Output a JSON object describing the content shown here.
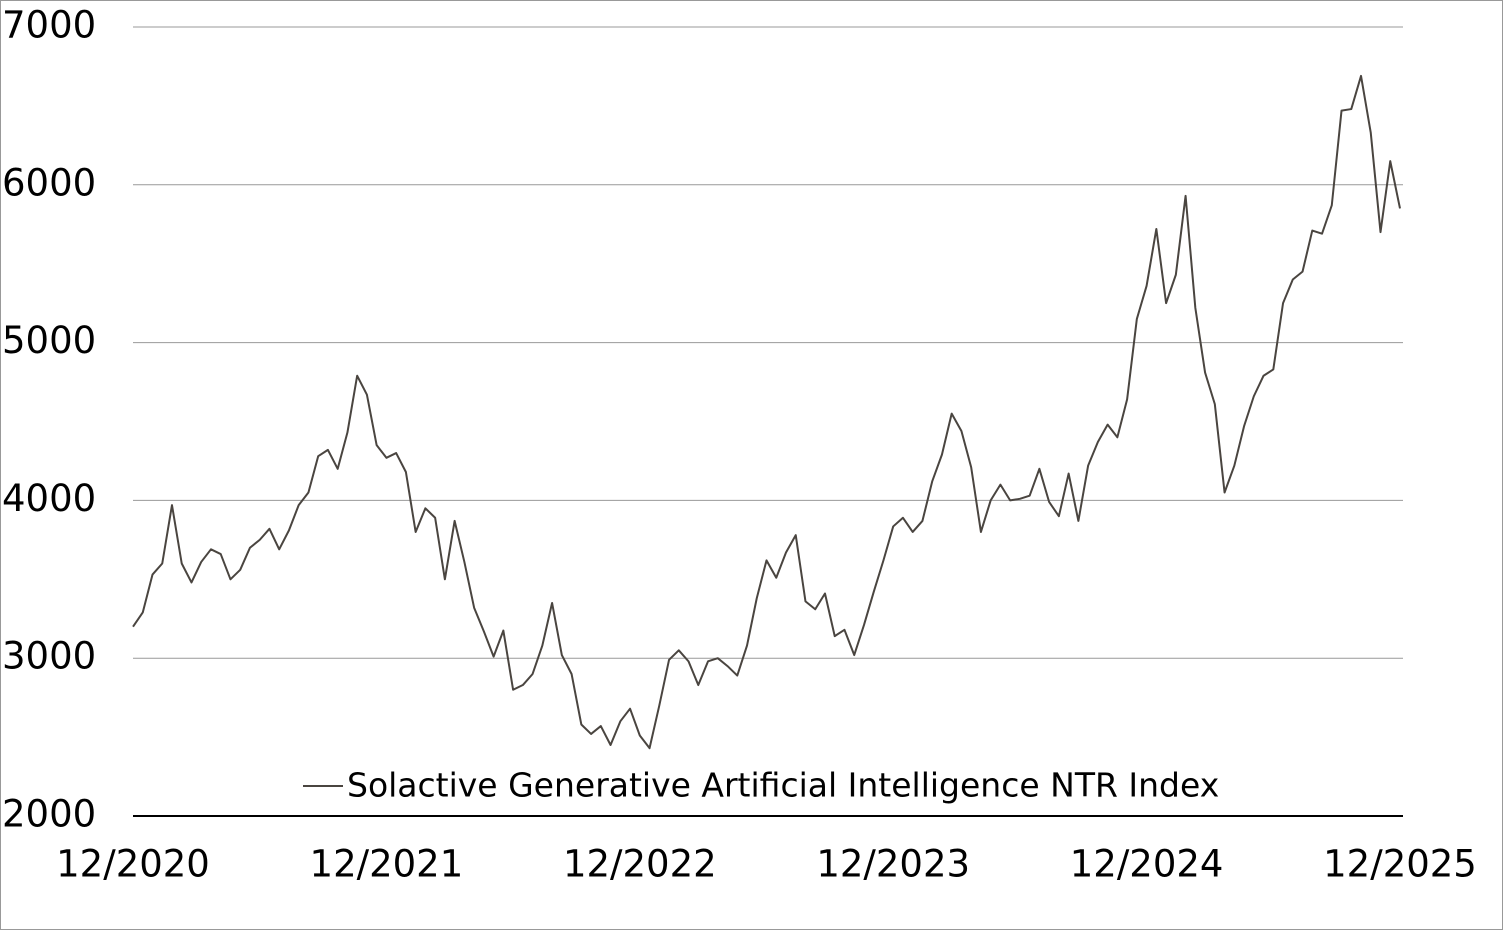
{
  "chart_data": {
    "type": "line",
    "categories": [
      "12/2020",
      null,
      null,
      null,
      null,
      null,
      null,
      null,
      null,
      null,
      null,
      null,
      null,
      null,
      null,
      null,
      null,
      null,
      null,
      null,
      null,
      null,
      null,
      null,
      null,
      null,
      "12/2021",
      null,
      null,
      null,
      null,
      null,
      null,
      null,
      null,
      null,
      null,
      null,
      null,
      null,
      null,
      null,
      null,
      null,
      null,
      null,
      null,
      null,
      null,
      null,
      null,
      null,
      "12/2022",
      null,
      null,
      null,
      null,
      null,
      null,
      null,
      null,
      null,
      null,
      null,
      null,
      null,
      null,
      null,
      null,
      null,
      null,
      null,
      null,
      null,
      null,
      null,
      null,
      null,
      "12/2023",
      null,
      null,
      null,
      null,
      null,
      null,
      null,
      null,
      null,
      null,
      null,
      null,
      null,
      null,
      null,
      null,
      null,
      null,
      null,
      null,
      null,
      null,
      null,
      null,
      null,
      "12/2024",
      null,
      null,
      null,
      null,
      null,
      null,
      null,
      null,
      null,
      null,
      null,
      null,
      null,
      null,
      null,
      null,
      null,
      null,
      null,
      null,
      null,
      null,
      null,
      null,
      null,
      "12/2025"
    ],
    "series": [
      {
        "name": "Solactive Generative Artificial Intelligence NTR Index",
        "color": "#4a4540",
        "values": [
          3200,
          3290,
          3530,
          3600,
          3970,
          3600,
          3480,
          3610,
          3690,
          3660,
          3500,
          3560,
          3700,
          3750,
          3820,
          3690,
          3810,
          3970,
          4050,
          4280,
          4320,
          4200,
          4430,
          4790,
          4670,
          4350,
          4270,
          4300,
          4180,
          3800,
          3950,
          3890,
          3500,
          3870,
          3610,
          3320,
          3170,
          3010,
          3175,
          2800,
          2830,
          2900,
          3080,
          3350,
          3020,
          2900,
          2580,
          2520,
          2570,
          2450,
          2600,
          2680,
          2510,
          2430,
          2700,
          2990,
          3050,
          2980,
          2830,
          2980,
          3000,
          2950,
          2890,
          3080,
          3380,
          3620,
          3510,
          3670,
          3780,
          3360,
          3310,
          3410,
          3140,
          3180,
          3020,
          3210,
          3420,
          3620,
          3835,
          3890,
          3800,
          3870,
          4120,
          4290,
          4550,
          4440,
          4210,
          3800,
          4000,
          4100,
          4000,
          4010,
          4030,
          4200,
          3990,
          3900,
          4170,
          3870,
          4220,
          4370,
          4480,
          4400,
          4640,
          5150,
          5360,
          5720,
          5250,
          5430,
          5930,
          5220,
          4810,
          4610,
          4050,
          4220,
          4470,
          4660,
          4790,
          4830,
          5250,
          5400,
          5450,
          5710,
          5690,
          5870,
          6470,
          6480,
          6690,
          6330,
          5700,
          6150,
          5850
        ]
      }
    ],
    "ylim": [
      2000,
      7000
    ],
    "yticks": [
      2000,
      3000,
      4000,
      5000,
      6000,
      7000
    ],
    "grid": true,
    "legend": "bottom"
  }
}
